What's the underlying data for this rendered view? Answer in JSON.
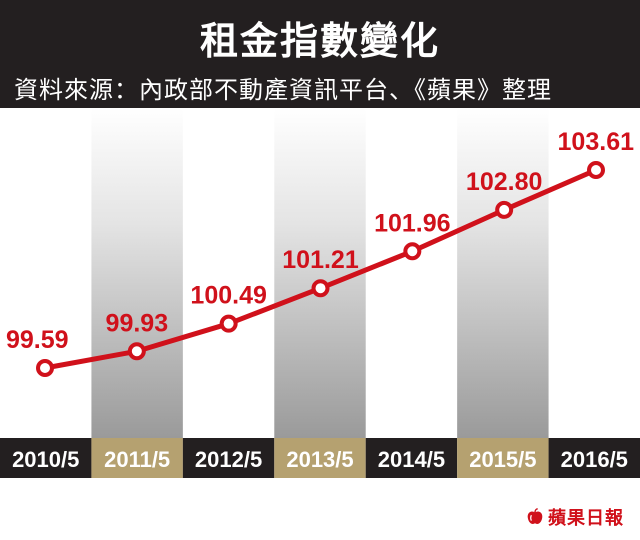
{
  "header": {
    "title": "租金指數變化",
    "source": "資料來源：內政部不動產資訊平台、《蘋果》整理"
  },
  "brand": {
    "logo_text": "蘋果日報",
    "icon": "apple-icon"
  },
  "colors": {
    "line": "#d0111b",
    "header_bg": "#231f20",
    "axis_dark": "#231f20",
    "axis_gold": "#b5a170",
    "band_gray": "#c8c8c8"
  },
  "chart_data": {
    "type": "line",
    "title": "租金指數變化",
    "categories": [
      "2010/5",
      "2011/5",
      "2012/5",
      "2013/5",
      "2014/5",
      "2015/5",
      "2016/5"
    ],
    "values": [
      99.59,
      99.93,
      100.49,
      101.21,
      101.96,
      102.8,
      103.61
    ],
    "labels": [
      "99.59",
      "99.93",
      "100.49",
      "101.21",
      "101.96",
      "102.80",
      "103.61"
    ],
    "grid": false,
    "legend": "none",
    "alternate_bands": true
  }
}
